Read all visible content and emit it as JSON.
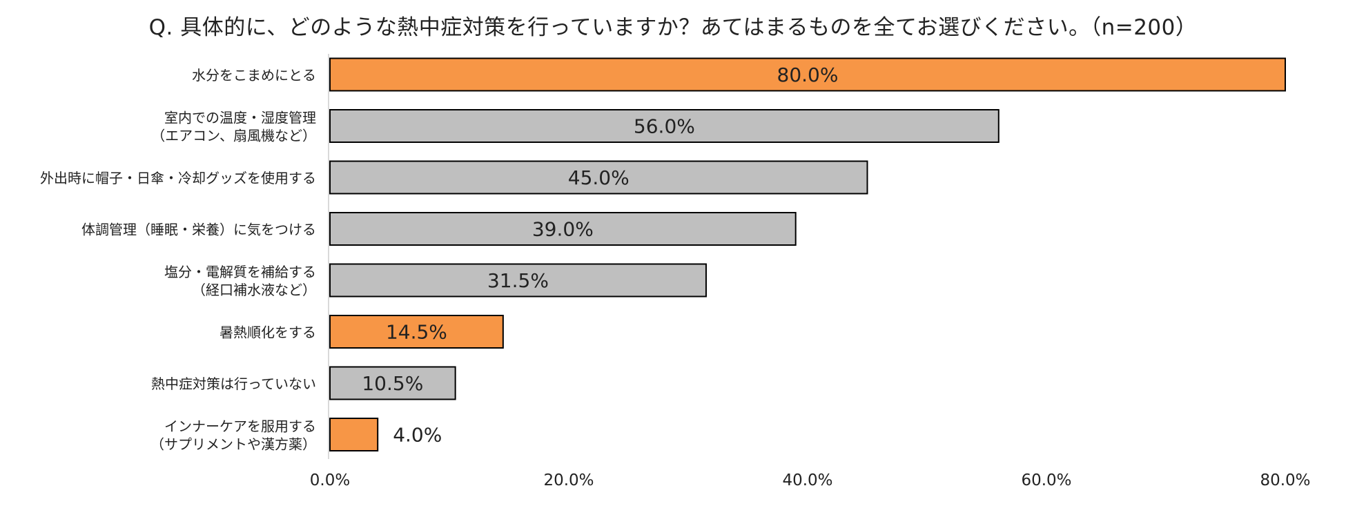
{
  "chart_data": {
    "type": "bar",
    "orientation": "horizontal",
    "title": "Q. 具体的に、どのような熱中症対策を行っていますか？あてはまるものを全てお選びください。（n=200）",
    "categories": [
      [
        "水分をこまめにとる"
      ],
      [
        "室内での温度・湿度管理",
        "（エアコン、扇風機など）"
      ],
      [
        "外出時に帽子・日傘・冷却グッズを使用する"
      ],
      [
        "体調管理（睡眠・栄養）に気をつける"
      ],
      [
        "塩分・電解質を補給する",
        "（経口補水液など）"
      ],
      [
        "暑熱順化をする"
      ],
      [
        "熱中症対策は行っていない"
      ],
      [
        "インナーケアを服用する",
        "（サプリメントや漢方薬）"
      ]
    ],
    "values": [
      80.0,
      56.0,
      45.0,
      39.0,
      31.5,
      14.5,
      10.5,
      4.0
    ],
    "value_labels": [
      "80.0%",
      "56.0%",
      "45.0%",
      "39.0%",
      "31.5%",
      "14.5%",
      "10.5%",
      "4.0%"
    ],
    "highlight": [
      true,
      false,
      false,
      false,
      false,
      true,
      false,
      true
    ],
    "colors": {
      "highlight": "#F79646",
      "normal": "#BFBFBF",
      "border": "#000000"
    },
    "xlim": [
      0,
      80
    ],
    "xticks": [
      "0.0%",
      "20.0%",
      "40.0%",
      "60.0%",
      "80.0%"
    ],
    "xlabel": "",
    "ylabel": "",
    "grid": false
  }
}
